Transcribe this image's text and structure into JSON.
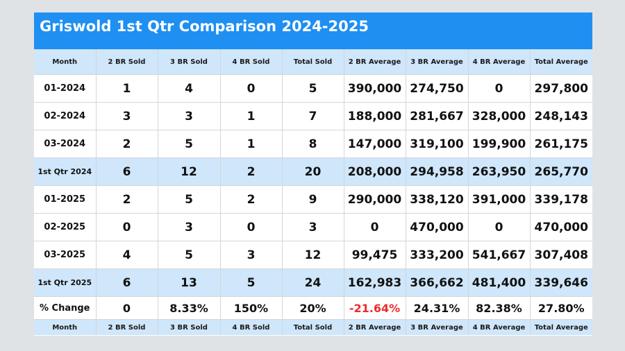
{
  "title": "Griswold 1st Qtr Comparison 2024-2025",
  "columns": [
    "Month",
    "2 BR Sold",
    "3 BR Sold",
    "4 BR Sold",
    "Total Sold",
    "2 BR Average",
    "3 BR Average",
    "4 BR Average",
    "Total Average"
  ],
  "rows": [
    {
      "label": "01-2024",
      "cells": [
        "1",
        "4",
        "0",
        "5",
        "390,000",
        "274,750",
        "0",
        "297,800"
      ]
    },
    {
      "label": "02-2024",
      "cells": [
        "3",
        "3",
        "1",
        "7",
        "188,000",
        "281,667",
        "328,000",
        "248,143"
      ]
    },
    {
      "label": "03-2024",
      "cells": [
        "2",
        "5",
        "1",
        "8",
        "147,000",
        "319,100",
        "199,900",
        "261,175"
      ]
    },
    {
      "label": "1st Qtr 2024",
      "cells": [
        "6",
        "12",
        "2",
        "20",
        "208,000",
        "294,958",
        "263,950",
        "265,770"
      ]
    },
    {
      "label": "01-2025",
      "cells": [
        "2",
        "5",
        "2",
        "9",
        "290,000",
        "338,120",
        "391,000",
        "339,178"
      ]
    },
    {
      "label": "02-2025",
      "cells": [
        "0",
        "3",
        "0",
        "3",
        "0",
        "470,000",
        "0",
        "470,000"
      ]
    },
    {
      "label": "03-2025",
      "cells": [
        "4",
        "5",
        "3",
        "12",
        "99,475",
        "333,200",
        "541,667",
        "307,408"
      ]
    },
    {
      "label": "1st Qtr 2025",
      "cells": [
        "6",
        "13",
        "5",
        "24",
        "162,983",
        "366,662",
        "481,400",
        "339,646"
      ]
    },
    {
      "label": "% Change",
      "cells": [
        "0",
        "8.33%",
        "150%",
        "20%",
        "-21.64%",
        "24.31%",
        "82.38%",
        "27.80%"
      ]
    }
  ],
  "colors": {
    "title_bar": "#1f8ff2",
    "header_bg": "#cfe6fb",
    "negative": "#ee2b2b",
    "background": "#dfe3e6"
  }
}
